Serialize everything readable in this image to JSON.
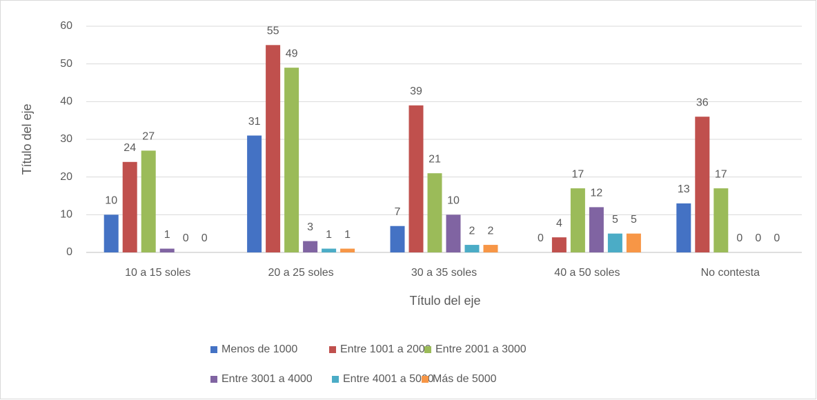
{
  "chart_data": {
    "type": "bar",
    "categories": [
      "10 a 15 soles",
      "20 a 25 soles",
      "30 a 35 soles",
      "40 a 50 soles",
      "No contesta"
    ],
    "series": [
      {
        "name": "Menos de 1000",
        "color": "#4472c4",
        "values": [
          10,
          31,
          7,
          0,
          13
        ]
      },
      {
        "name": "Entre 1001 a 2000",
        "color": "#c0504d",
        "values": [
          24,
          55,
          39,
          4,
          36
        ]
      },
      {
        "name": "Entre 2001 a 3000",
        "color": "#9bbb59",
        "values": [
          27,
          49,
          21,
          17,
          17
        ]
      },
      {
        "name": "Entre 3001 a 4000",
        "color": "#8064a2",
        "values": [
          1,
          3,
          10,
          12,
          0
        ]
      },
      {
        "name": "Entre 4001 a 5000",
        "color": "#4bacc6",
        "values": [
          0,
          1,
          2,
          5,
          0
        ]
      },
      {
        "name": "Más de 5000",
        "color": "#f79646",
        "values": [
          0,
          1,
          2,
          5,
          0
        ]
      }
    ],
    "x_label": "Título del eje",
    "y_label": "Título del eje",
    "ylim": [
      0,
      60
    ],
    "yticks": [
      0,
      10,
      20,
      30,
      40,
      50,
      60
    ],
    "grid": true,
    "legend": "bottom"
  }
}
